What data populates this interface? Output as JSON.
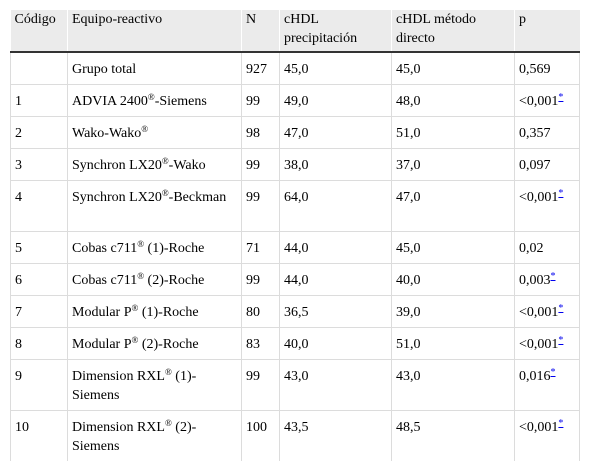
{
  "headers": {
    "codigo": "Código",
    "equipo": "Equipo-reactivo",
    "n": "N",
    "precipitacion": "cHDL precipitación",
    "directo": "cHDL método directo",
    "p": "p"
  },
  "rows": [
    {
      "codigo": "",
      "equipo_pre": "Grupo total",
      "reg": "",
      "equipo_post": "",
      "n": "927",
      "precipitacion": "45,0",
      "directo": "45,0",
      "p": "0,569",
      "mark": ""
    },
    {
      "codigo": "1",
      "equipo_pre": "ADVIA 2400",
      "reg": "®",
      "equipo_post": "-Siemens",
      "n": "99",
      "precipitacion": "49,0",
      "directo": "48,0",
      "p": "<0,001",
      "mark": "*"
    },
    {
      "codigo": "2",
      "equipo_pre": "Wako-Wako",
      "reg": "®",
      "equipo_post": "",
      "n": "98",
      "precipitacion": "47,0",
      "directo": "51,0",
      "p": "0,357",
      "mark": ""
    },
    {
      "codigo": "3",
      "equipo_pre": "Synchron LX20",
      "reg": "®",
      "equipo_post": "-Wako",
      "n": "99",
      "precipitacion": "38,0",
      "directo": "37,0",
      "p": "0,097",
      "mark": ""
    },
    {
      "codigo": "4",
      "equipo_pre": "Synchron LX20",
      "reg": "®",
      "equipo_post": "-Beckman",
      "n": "99",
      "precipitacion": "64,0",
      "directo": "47,0",
      "p": "<0,001",
      "mark": "*"
    },
    {
      "codigo": "5",
      "equipo_pre": "Cobas c711",
      "reg": "®",
      "equipo_post": " (1)-Roche",
      "n": "71",
      "precipitacion": "44,0",
      "directo": "45,0",
      "p": "0,02",
      "mark": ""
    },
    {
      "codigo": "6",
      "equipo_pre": "Cobas c711",
      "reg": "®",
      "equipo_post": " (2)-Roche",
      "n": "99",
      "precipitacion": "44,0",
      "directo": "40,0",
      "p": "0,003",
      "mark": "*"
    },
    {
      "codigo": "7",
      "equipo_pre": "Modular P",
      "reg": "®",
      "equipo_post": " (1)-Roche",
      "n": "80",
      "precipitacion": "36,5",
      "directo": "39,0",
      "p": "<0,001",
      "mark": "*"
    },
    {
      "codigo": "8",
      "equipo_pre": "Modular P",
      "reg": "®",
      "equipo_post": " (2)-Roche",
      "n": "83",
      "precipitacion": "40,0",
      "directo": "51,0",
      "p": "<0,001",
      "mark": "*"
    },
    {
      "codigo": "9",
      "equipo_pre": "Dimension RXL",
      "reg": "®",
      "equipo_post": " (1)-Siemens",
      "n": "99",
      "precipitacion": "43,0",
      "directo": "43,0",
      "p": "0,016",
      "mark": "*"
    },
    {
      "codigo": "10",
      "equipo_pre": "Dimension RXL",
      "reg": "®",
      "equipo_post": " (2)-Siemens",
      "n": "100",
      "precipitacion": "43,5",
      "directo": "48,5",
      "p": "<0,001",
      "mark": "*"
    }
  ]
}
